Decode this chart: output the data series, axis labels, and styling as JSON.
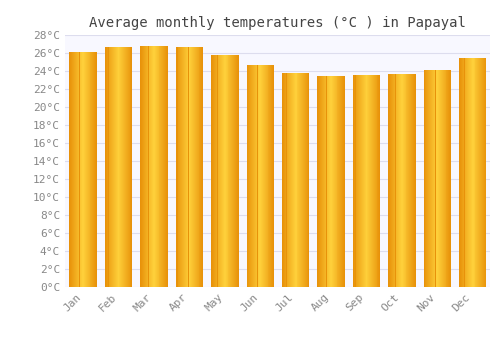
{
  "title": "Average monthly temperatures (°C ) in Papayal",
  "months": [
    "Jan",
    "Feb",
    "Mar",
    "Apr",
    "May",
    "Jun",
    "Jul",
    "Aug",
    "Sep",
    "Oct",
    "Nov",
    "Dec"
  ],
  "values": [
    26.1,
    26.7,
    26.8,
    26.7,
    25.8,
    24.7,
    23.8,
    23.5,
    23.6,
    23.7,
    24.1,
    25.4
  ],
  "bar_color_center": "#FFD060",
  "bar_color_edge": "#E8920A",
  "background_color": "#ffffff",
  "plot_bg_color": "#f8f8ff",
  "grid_color": "#ddddee",
  "ylim": [
    0,
    28
  ],
  "ytick_step": 2,
  "title_fontsize": 10,
  "tick_fontsize": 8,
  "tick_color": "#888888",
  "title_color": "#444444"
}
